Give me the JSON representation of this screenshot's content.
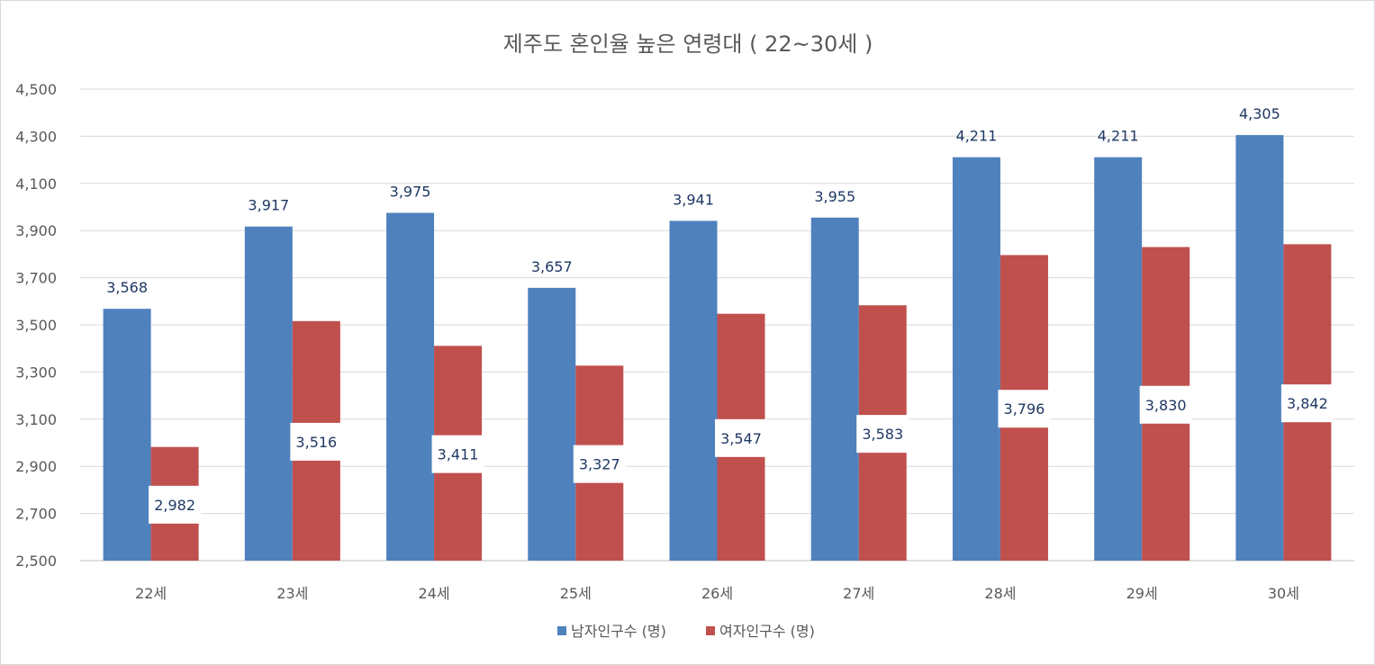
{
  "chart_data": {
    "type": "bar",
    "title": "제주도 혼인율 높은 연령대 ( 22~30세 )",
    "xlabel": "",
    "ylabel": "",
    "categories": [
      "22세",
      "23세",
      "24세",
      "25세",
      "26세",
      "27세",
      "28세",
      "29세",
      "30세"
    ],
    "series": [
      {
        "name": "남자인구수 (명)",
        "color": "#4f81bd",
        "values": [
          3568,
          3917,
          3975,
          3657,
          3941,
          3955,
          4211,
          4211,
          4305
        ],
        "labels": [
          "3,568",
          "3,917",
          "3,975",
          "3,657",
          "3,941",
          "3,955",
          "4,211",
          "4,211",
          "4,305"
        ]
      },
      {
        "name": "여자인구수 (명)",
        "color": "#c0504d",
        "values": [
          2982,
          3516,
          3411,
          3327,
          3547,
          3583,
          3796,
          3830,
          3842
        ],
        "labels": [
          "2,982",
          "3,516",
          "3,411",
          "3,327",
          "3,547",
          "3,583",
          "3,796",
          "3,830",
          "3,842"
        ]
      }
    ],
    "ylim": [
      2500,
      4500
    ],
    "yticks": [
      "2,500",
      "2,700",
      "2,900",
      "3,100",
      "3,300",
      "3,500",
      "3,700",
      "3,900",
      "4,100",
      "4,300",
      "4,500"
    ],
    "grid": true,
    "legend_position": "bottom"
  }
}
